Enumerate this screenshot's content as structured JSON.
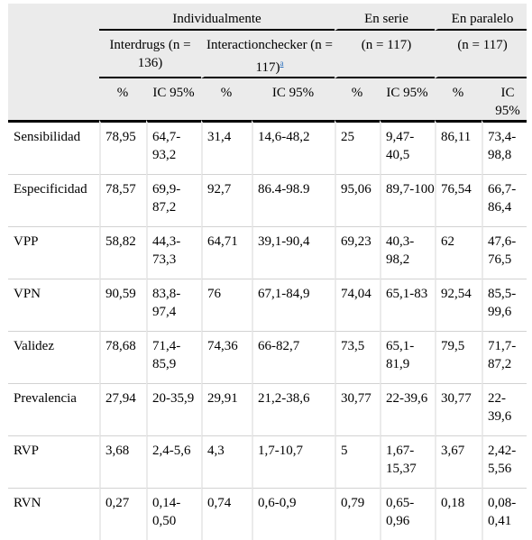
{
  "headers": {
    "group_individual": "Individualmente",
    "group_serie": "En serie",
    "group_paralelo": "En paralelo",
    "interdrugs": "Interdrugs (n = 136)",
    "interactionchecker": "Interactionchecker (n = 117)",
    "footnote_marker": "a",
    "serie_n": "(n = 117)",
    "paralelo_n": "(n = 117)",
    "pct": "%",
    "ic": "IC 95%"
  },
  "rows": [
    {
      "label": "Sensibilidad",
      "v": [
        "78,95",
        "64,7-93,2",
        "31,4",
        "14,6-48,2",
        "25",
        "9,47-40,5",
        "86,11",
        "73,4-98,8"
      ]
    },
    {
      "label": "Especificidad",
      "v": [
        "78,57",
        "69,9-87,2",
        "92,7",
        "86.4-98.9",
        "95,06",
        "89,7-100",
        "76,54",
        "66,7-86,4"
      ]
    },
    {
      "label": "VPP",
      "v": [
        "58,82",
        "44,3-73,3",
        "64,71",
        "39,1-90,4",
        "69,23",
        "40,3-98,2",
        "62",
        "47,6-76,5"
      ]
    },
    {
      "label": "VPN",
      "v": [
        "90,59",
        "83,8-97,4",
        "76",
        "67,1-84,9",
        "74,04",
        "65,1-83",
        "92,54",
        "85,5-99,6"
      ]
    },
    {
      "label": "Validez",
      "v": [
        "78,68",
        "71,4-85,9",
        "74,36",
        "66-82,7",
        "73,5",
        "65,1-81,9",
        "79,5",
        "71,7-87,2"
      ]
    },
    {
      "label": "Prevalencia",
      "v": [
        "27,94",
        "20-35,9",
        "29,91",
        "21,2-38,6",
        "30,77",
        "22-39,6",
        "30,77",
        "22-39,6"
      ]
    },
    {
      "label": "RVP",
      "v": [
        "3,68",
        "2,4-5,6",
        "4,3",
        "1,7-10,7",
        "5",
        "1,67-15,37",
        "3,67",
        "2,42-5,56"
      ]
    },
    {
      "label": "RVN",
      "v": [
        "0,27",
        "0,14-0,50",
        "0,74",
        "0,6-0,9",
        "0,79",
        "0,65-0,96",
        "0,18",
        "0,08-0,41"
      ]
    }
  ]
}
